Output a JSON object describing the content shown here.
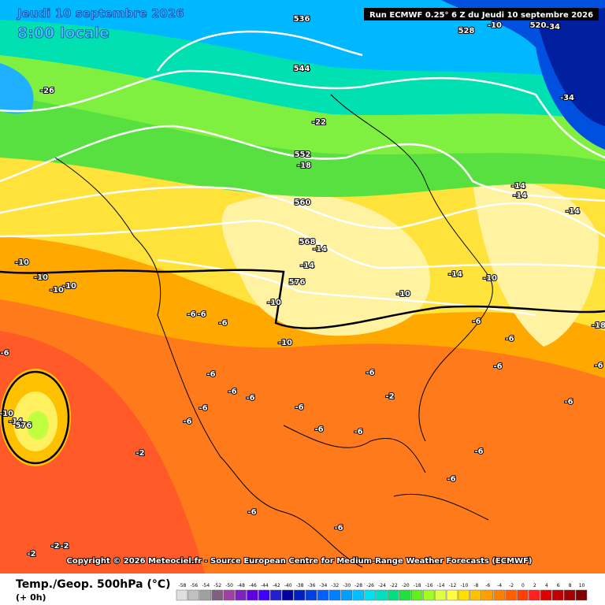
{
  "header": {
    "date": "Jeudi 10 septembre 2026",
    "time": "8:00 locale",
    "run": "Run ECMWF 0.25° 6 Z du Jeudi 10 septembre 2026"
  },
  "copyright": "Copyright © 2026 Meteociel.fr - Source European Centre for Medium-Range Weather Forecasts (ECMWF)",
  "legend": {
    "title": "Temp./Geop. 500hPa (°C)",
    "lead": "(+ 0h)",
    "values": [
      -58,
      -56,
      -54,
      -52,
      -50,
      -48,
      -46,
      -44,
      -42,
      -40,
      -38,
      -36,
      -34,
      -32,
      -30,
      -28,
      -26,
      -24,
      -22,
      -20,
      -18,
      -16,
      -14,
      -12,
      -10,
      -8,
      -6,
      -4,
      -2,
      0,
      2,
      4,
      6,
      8,
      10
    ],
    "colors": [
      "#e0e0e0",
      "#c0c0c0",
      "#a0a0a0",
      "#806080",
      "#a040a0",
      "#8020c0",
      "#6000e0",
      "#4000ff",
      "#2020d0",
      "#0000a0",
      "#0020c0",
      "#0040e0",
      "#0060ff",
      "#0080ff",
      "#00a0ff",
      "#00c0ff",
      "#00e0f0",
      "#00e0c0",
      "#00e080",
      "#20e040",
      "#60f020",
      "#a0ff20",
      "#e0ff40",
      "#ffff40",
      "#ffe000",
      "#ffc000",
      "#ffa000",
      "#ff8000",
      "#ff6000",
      "#ff4000",
      "#ff2020",
      "#e00000",
      "#c00000",
      "#a00000",
      "#800000"
    ]
  },
  "map_labels": {
    "temperatures": [
      -26,
      -22,
      -18,
      -14,
      -14,
      -10,
      -10,
      -6,
      -6,
      -6,
      -10,
      -10,
      -10,
      -10,
      -14,
      -14,
      -14,
      -14,
      -10,
      -10,
      -34,
      -18,
      -6,
      -10,
      -14,
      -2,
      -2,
      -6,
      -6,
      -6,
      -6,
      -6,
      -6,
      -6,
      -6,
      -6,
      -6,
      -6,
      -6,
      -6,
      -6,
      -6,
      -6,
      -6,
      -2,
      -2,
      -2,
      -6,
      -10,
      -34
    ],
    "geopotentials": [
      536,
      528,
      520,
      544,
      552,
      560,
      568,
      576,
      576
    ]
  }
}
